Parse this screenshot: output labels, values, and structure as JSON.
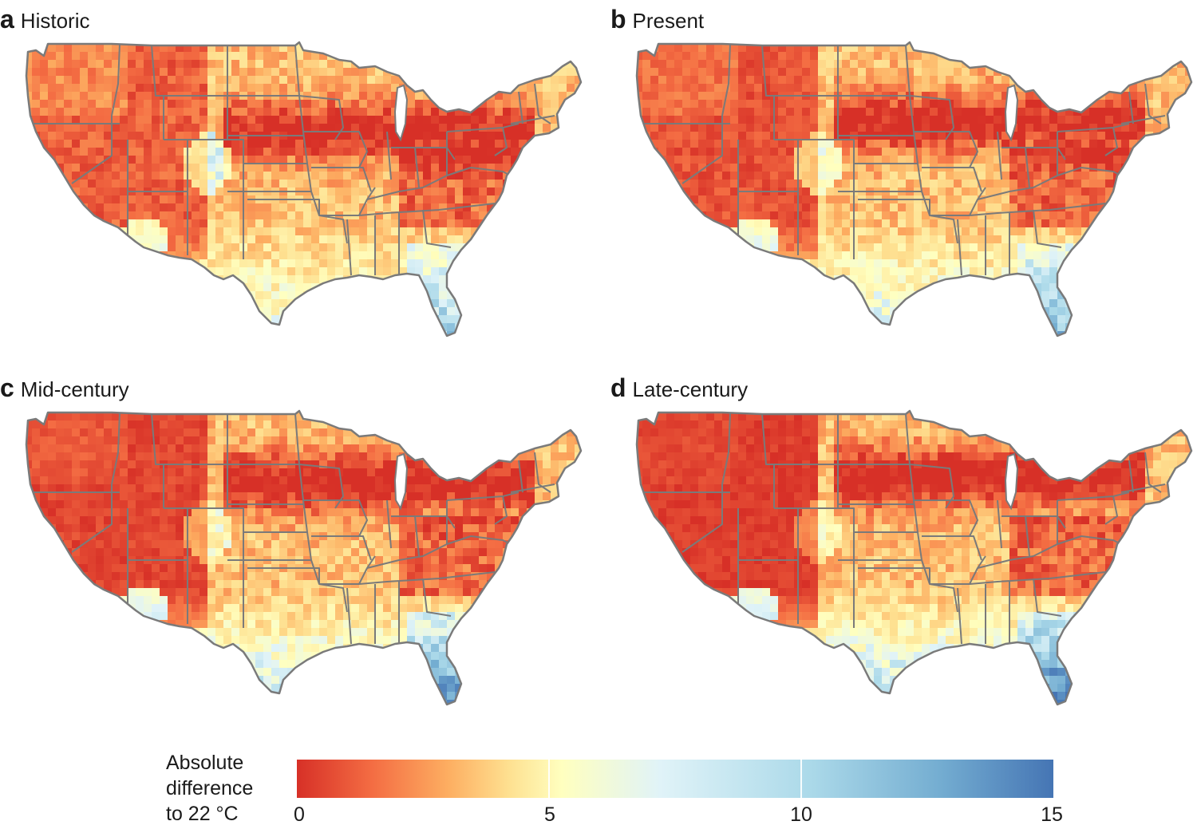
{
  "panels": [
    {
      "letter": "a",
      "title": "Historic",
      "heat": 0.45
    },
    {
      "letter": "b",
      "title": "Present",
      "heat": 0.6
    },
    {
      "letter": "c",
      "title": "Mid-century",
      "heat": 0.75
    },
    {
      "letter": "d",
      "title": "Late-century",
      "heat": 0.85
    }
  ],
  "legend": {
    "title_lines": [
      "Absolute",
      "difference",
      "to 22 °C"
    ],
    "ticks": [
      "0",
      "5",
      "10",
      "15"
    ],
    "tick_values": [
      0,
      5,
      10,
      15
    ],
    "range": [
      0,
      15
    ],
    "colors": {
      "low": "#d73027",
      "mid": "#ffffbf",
      "high": "#4575b4"
    }
  },
  "colors": {
    "border": "#7a7a7a",
    "hot": "#d73027",
    "warm": "#f46d43",
    "orange": "#fdae61",
    "yellow": "#fee090",
    "pale": "#ffffbf",
    "cyan": "#e0f3f8",
    "lightblue": "#abd9e9",
    "blue": "#74add1",
    "deepblue": "#4575b4"
  }
}
